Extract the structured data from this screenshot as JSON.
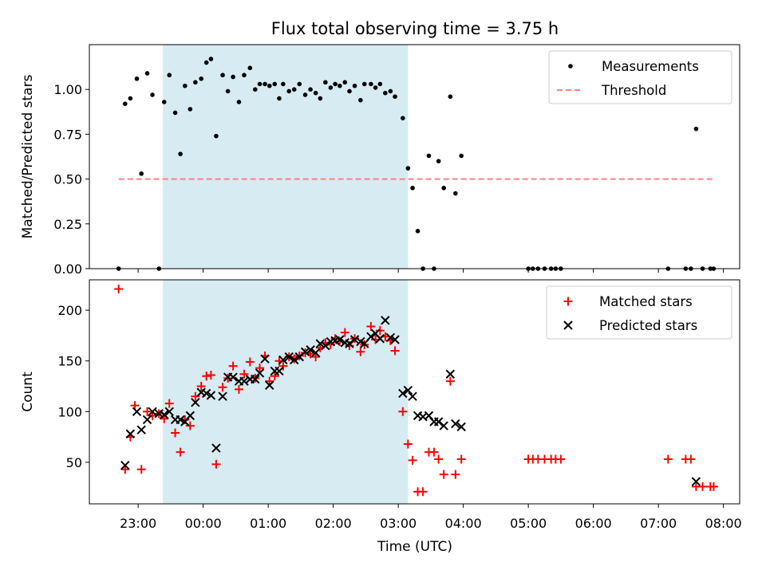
{
  "chart_data": [
    {
      "type": "scatter",
      "title": "Flux total observing time = 3.75 h",
      "xlabel": "",
      "ylabel": "Matched/Predicted stars",
      "x_unit": "hours relative to 00:00 UTC",
      "xlim": [
        -1.75,
        8.25
      ],
      "ylim": [
        0,
        1.25
      ],
      "yticks": [
        0.0,
        0.25,
        0.5,
        0.75,
        1.0
      ],
      "ytick_labels": [
        "0.00",
        "0.25",
        "0.50",
        "0.75",
        "1.00"
      ],
      "grid": false,
      "legend_position": "upper right",
      "shaded_interval": [
        -0.62,
        3.15
      ],
      "shade_color": "#add8e6",
      "series": [
        {
          "name": "Measurements",
          "marker": "dot",
          "color": "#000000",
          "points": [
            [
              -1.3,
              0.0
            ],
            [
              -1.2,
              0.92
            ],
            [
              -1.12,
              0.95
            ],
            [
              -1.02,
              1.06
            ],
            [
              -0.95,
              0.53
            ],
            [
              -0.86,
              1.09
            ],
            [
              -0.78,
              0.97
            ],
            [
              -0.68,
              0.0
            ],
            [
              -0.6,
              0.93
            ],
            [
              -0.52,
              1.08
            ],
            [
              -0.43,
              0.87
            ],
            [
              -0.35,
              0.64
            ],
            [
              -0.28,
              1.02
            ],
            [
              -0.2,
              0.89
            ],
            [
              -0.12,
              1.04
            ],
            [
              -0.03,
              1.06
            ],
            [
              0.05,
              1.15
            ],
            [
              0.12,
              1.17
            ],
            [
              0.2,
              0.74
            ],
            [
              0.3,
              1.08
            ],
            [
              0.38,
              0.99
            ],
            [
              0.46,
              1.07
            ],
            [
              0.55,
              0.93
            ],
            [
              0.63,
              1.08
            ],
            [
              0.72,
              1.12
            ],
            [
              0.8,
              1.0
            ],
            [
              0.87,
              1.03
            ],
            [
              0.95,
              1.03
            ],
            [
              1.02,
              1.02
            ],
            [
              1.1,
              1.03
            ],
            [
              1.17,
              0.95
            ],
            [
              1.23,
              1.03
            ],
            [
              1.32,
              0.99
            ],
            [
              1.4,
              1.0
            ],
            [
              1.48,
              1.03
            ],
            [
              1.57,
              0.97
            ],
            [
              1.65,
              1.0
            ],
            [
              1.73,
              0.98
            ],
            [
              1.8,
              0.95
            ],
            [
              1.88,
              1.04
            ],
            [
              1.96,
              1.01
            ],
            [
              2.03,
              1.03
            ],
            [
              2.1,
              1.02
            ],
            [
              2.18,
              1.04
            ],
            [
              2.25,
              0.99
            ],
            [
              2.33,
              1.02
            ],
            [
              2.42,
              0.94
            ],
            [
              2.48,
              1.03
            ],
            [
              2.58,
              1.03
            ],
            [
              2.65,
              1.01
            ],
            [
              2.72,
              1.03
            ],
            [
              2.8,
              0.98
            ],
            [
              2.88,
              0.99
            ],
            [
              2.95,
              0.96
            ],
            [
              3.07,
              0.84
            ],
            [
              3.15,
              0.56
            ],
            [
              3.22,
              0.45
            ],
            [
              3.3,
              0.21
            ],
            [
              3.38,
              0.0
            ],
            [
              3.47,
              0.63
            ],
            [
              3.55,
              0.0
            ],
            [
              3.62,
              0.6
            ],
            [
              3.7,
              0.45
            ],
            [
              3.8,
              0.96
            ],
            [
              3.88,
              0.42
            ],
            [
              3.97,
              0.63
            ],
            [
              5.0,
              0.0
            ],
            [
              5.07,
              0.0
            ],
            [
              5.15,
              0.0
            ],
            [
              5.25,
              0.0
            ],
            [
              5.35,
              0.0
            ],
            [
              5.42,
              0.0
            ],
            [
              5.5,
              0.0
            ],
            [
              7.15,
              0.0
            ],
            [
              7.42,
              0.0
            ],
            [
              7.5,
              0.0
            ],
            [
              7.58,
              0.78
            ],
            [
              7.68,
              0.0
            ],
            [
              7.8,
              0.0
            ],
            [
              7.85,
              0.0
            ]
          ]
        },
        {
          "name": "Threshold",
          "type": "line",
          "style": "dashed",
          "color": "#ff8080",
          "points": [
            [
              -1.3,
              0.5
            ],
            [
              7.85,
              0.5
            ]
          ]
        }
      ]
    },
    {
      "type": "scatter",
      "title": "",
      "xlabel": "Time (UTC)",
      "ylabel": "Count",
      "x_unit": "hours relative to 00:00 UTC",
      "xlim": [
        -1.75,
        8.25
      ],
      "ylim": [
        9,
        230
      ],
      "xticks": [
        -1,
        0,
        1,
        2,
        3,
        4,
        5,
        6,
        7,
        8
      ],
      "xtick_labels": [
        "23:00",
        "00:00",
        "01:00",
        "02:00",
        "03:00",
        "04:00",
        "05:00",
        "06:00",
        "07:00",
        "08:00"
      ],
      "yticks": [
        50,
        100,
        150,
        200
      ],
      "ytick_labels": [
        "50",
        "100",
        "150",
        "200"
      ],
      "grid": false,
      "legend_position": "upper right",
      "shaded_interval": [
        -0.62,
        3.15
      ],
      "shade_color": "#add8e6",
      "series": [
        {
          "name": "Matched stars",
          "marker": "plus",
          "color": "#ff0000",
          "points": [
            [
              -1.3,
              221
            ],
            [
              -1.2,
              43
            ],
            [
              -1.12,
              75
            ],
            [
              -1.05,
              106
            ],
            [
              -0.95,
              43
            ],
            [
              -0.86,
              100
            ],
            [
              -0.78,
              96
            ],
            [
              -0.68,
              98
            ],
            [
              -0.6,
              93
            ],
            [
              -0.52,
              108
            ],
            [
              -0.43,
              79
            ],
            [
              -0.35,
              60
            ],
            [
              -0.28,
              92
            ],
            [
              -0.2,
              86
            ],
            [
              -0.12,
              115
            ],
            [
              -0.03,
              125
            ],
            [
              0.05,
              135
            ],
            [
              0.12,
              136
            ],
            [
              0.2,
              48
            ],
            [
              0.3,
              124
            ],
            [
              0.38,
              133
            ],
            [
              0.46,
              145
            ],
            [
              0.55,
              122
            ],
            [
              0.63,
              137
            ],
            [
              0.72,
              149
            ],
            [
              0.8,
              133
            ],
            [
              0.87,
              143
            ],
            [
              0.95,
              155
            ],
            [
              1.02,
              130
            ],
            [
              1.1,
              135
            ],
            [
              1.17,
              150
            ],
            [
              1.23,
              145
            ],
            [
              1.32,
              154
            ],
            [
              1.4,
              152
            ],
            [
              1.48,
              155
            ],
            [
              1.57,
              158
            ],
            [
              1.65,
              157
            ],
            [
              1.73,
              154
            ],
            [
              1.8,
              163
            ],
            [
              1.88,
              168
            ],
            [
              1.96,
              166
            ],
            [
              2.03,
              172
            ],
            [
              2.1,
              169
            ],
            [
              2.18,
              178
            ],
            [
              2.25,
              165
            ],
            [
              2.33,
              172
            ],
            [
              2.42,
              159
            ],
            [
              2.48,
              166
            ],
            [
              2.58,
              184
            ],
            [
              2.65,
              171
            ],
            [
              2.72,
              180
            ],
            [
              2.8,
              174
            ],
            [
              2.88,
              170
            ],
            [
              2.95,
              160
            ],
            [
              3.07,
              100
            ],
            [
              3.15,
              68
            ],
            [
              3.22,
              52
            ],
            [
              3.3,
              21
            ],
            [
              3.38,
              21
            ],
            [
              3.47,
              60
            ],
            [
              3.55,
              60
            ],
            [
              3.62,
              53
            ],
            [
              3.7,
              38
            ],
            [
              3.8,
              130
            ],
            [
              3.88,
              38
            ],
            [
              3.97,
              53
            ],
            [
              5.0,
              53
            ],
            [
              5.07,
              53
            ],
            [
              5.15,
              53
            ],
            [
              5.25,
              53
            ],
            [
              5.35,
              53
            ],
            [
              5.42,
              53
            ],
            [
              5.5,
              53
            ],
            [
              7.15,
              53
            ],
            [
              7.42,
              53
            ],
            [
              7.5,
              53
            ],
            [
              7.58,
              26
            ],
            [
              7.68,
              26
            ],
            [
              7.8,
              26
            ],
            [
              7.85,
              26
            ]
          ]
        },
        {
          "name": "Predicted stars",
          "marker": "x",
          "color": "#000000",
          "points": [
            [
              -1.2,
              47
            ],
            [
              -1.12,
              78
            ],
            [
              -1.02,
              100
            ],
            [
              -0.95,
              82
            ],
            [
              -0.86,
              92
            ],
            [
              -0.78,
              100
            ],
            [
              -0.68,
              98
            ],
            [
              -0.6,
              97
            ],
            [
              -0.52,
              100
            ],
            [
              -0.43,
              92
            ],
            [
              -0.35,
              92
            ],
            [
              -0.28,
              90
            ],
            [
              -0.2,
              96
            ],
            [
              -0.12,
              109
            ],
            [
              -0.03,
              119
            ],
            [
              0.05,
              118
            ],
            [
              0.12,
              116
            ],
            [
              0.2,
              64
            ],
            [
              0.3,
              115
            ],
            [
              0.38,
              134
            ],
            [
              0.46,
              134
            ],
            [
              0.55,
              130
            ],
            [
              0.63,
              130
            ],
            [
              0.72,
              132
            ],
            [
              0.8,
              132
            ],
            [
              0.87,
              138
            ],
            [
              0.95,
              152
            ],
            [
              1.02,
              126
            ],
            [
              1.1,
              140
            ],
            [
              1.17,
              140
            ],
            [
              1.23,
              151
            ],
            [
              1.32,
              154
            ],
            [
              1.4,
              151
            ],
            [
              1.48,
              154
            ],
            [
              1.57,
              159
            ],
            [
              1.65,
              161
            ],
            [
              1.73,
              158
            ],
            [
              1.8,
              167
            ],
            [
              1.88,
              165
            ],
            [
              1.96,
              169
            ],
            [
              2.03,
              170
            ],
            [
              2.1,
              171
            ],
            [
              2.18,
              168
            ],
            [
              2.25,
              167
            ],
            [
              2.33,
              171
            ],
            [
              2.42,
              169
            ],
            [
              2.48,
              167
            ],
            [
              2.58,
              174
            ],
            [
              2.65,
              177
            ],
            [
              2.72,
              172
            ],
            [
              2.8,
              190
            ],
            [
              2.88,
              173
            ],
            [
              2.95,
              171
            ],
            [
              3.07,
              118
            ],
            [
              3.15,
              121
            ],
            [
              3.22,
              115
            ],
            [
              3.3,
              96
            ],
            [
              3.38,
              95
            ],
            [
              3.47,
              96
            ],
            [
              3.55,
              90
            ],
            [
              3.62,
              90
            ],
            [
              3.7,
              86
            ],
            [
              3.8,
              137
            ],
            [
              3.88,
              88
            ],
            [
              3.97,
              85
            ],
            [
              7.58,
              31
            ]
          ]
        }
      ]
    }
  ]
}
